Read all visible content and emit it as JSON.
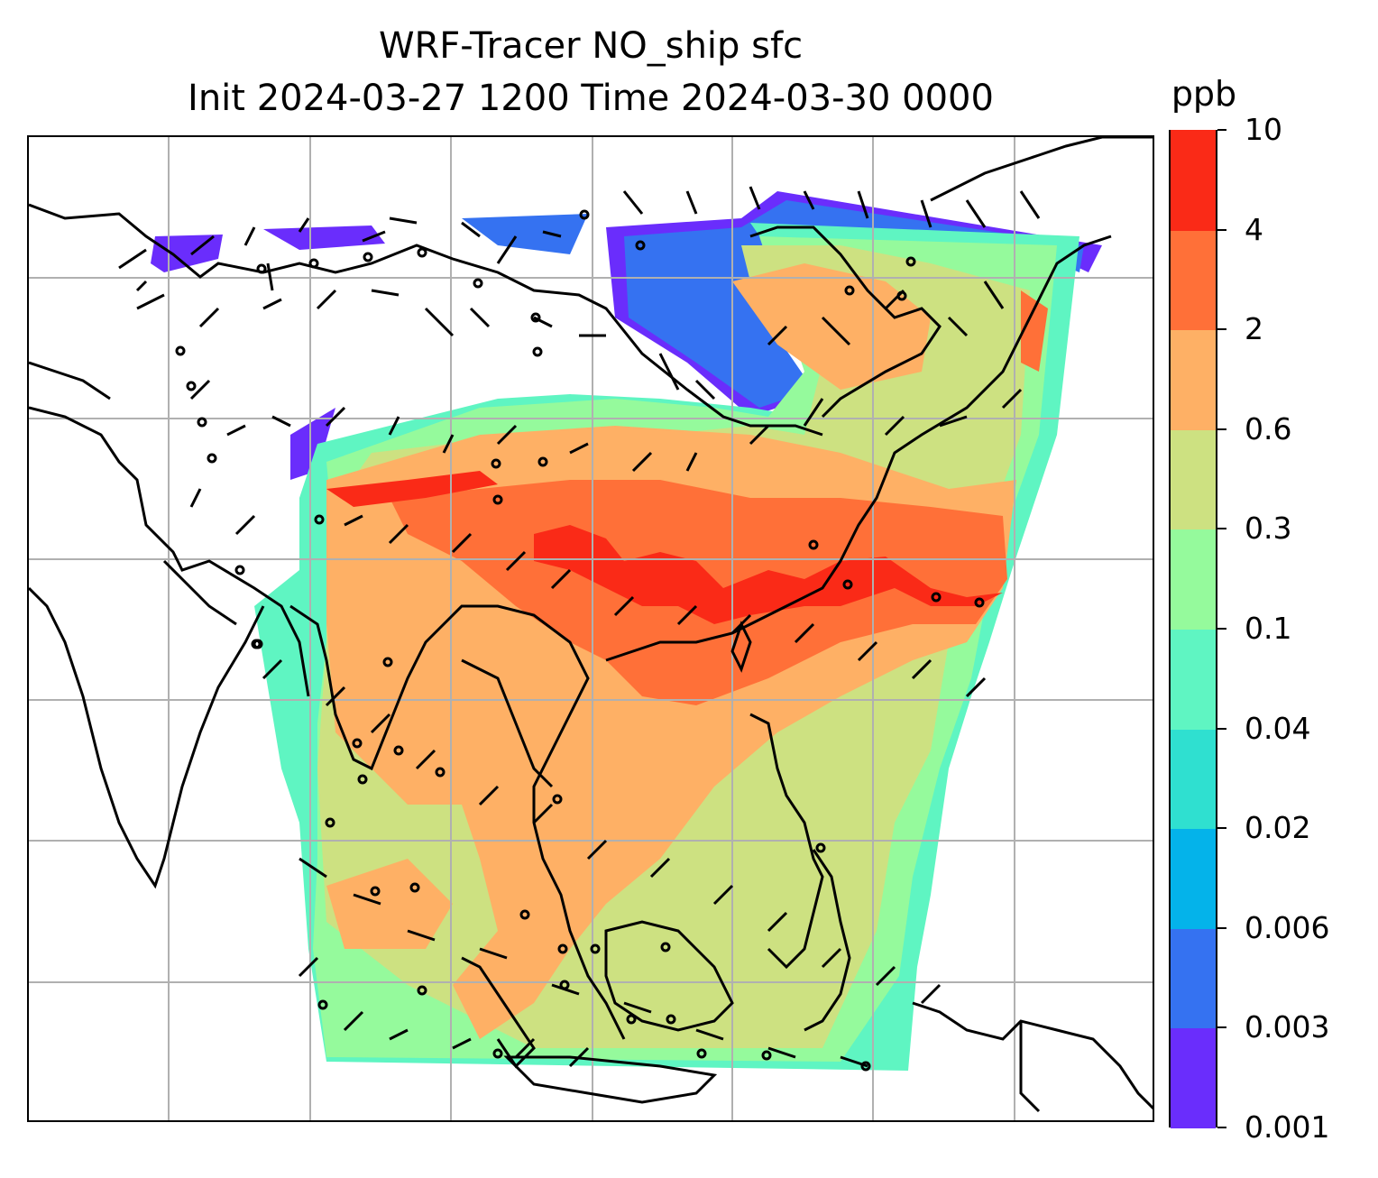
{
  "title": {
    "line1": "WRF-Tracer NO_ship sfc",
    "line2": "Init 2024-03-27 1200 Time 2024-03-30 0000"
  },
  "colorbar": {
    "unit": "ppb",
    "levels": [
      "0.001",
      "0.003",
      "0.006",
      "0.02",
      "0.04",
      "0.1",
      "0.3",
      "0.6",
      "2",
      "4",
      "10"
    ],
    "colors": [
      "#6a2dfc",
      "#3572f1",
      "#04b3ea",
      "#2fe0d0",
      "#5ff5c2",
      "#95fa9c",
      "#cde181",
      "#feb065",
      "#ff7038",
      "#fa2a17"
    ]
  },
  "map": {
    "field_colors": {
      "very_low": "#6a2dfc",
      "low": "#3572f1",
      "cyan": "#2fe0d0",
      "aqua": "#5ff5c2",
      "light_green": "#95fa9c",
      "khaki": "#cde181",
      "light_orange": "#feb065",
      "orange": "#ff7038",
      "red": "#fa2a17"
    },
    "gridlines": true,
    "coastlines": true,
    "wind_barbs": true
  }
}
